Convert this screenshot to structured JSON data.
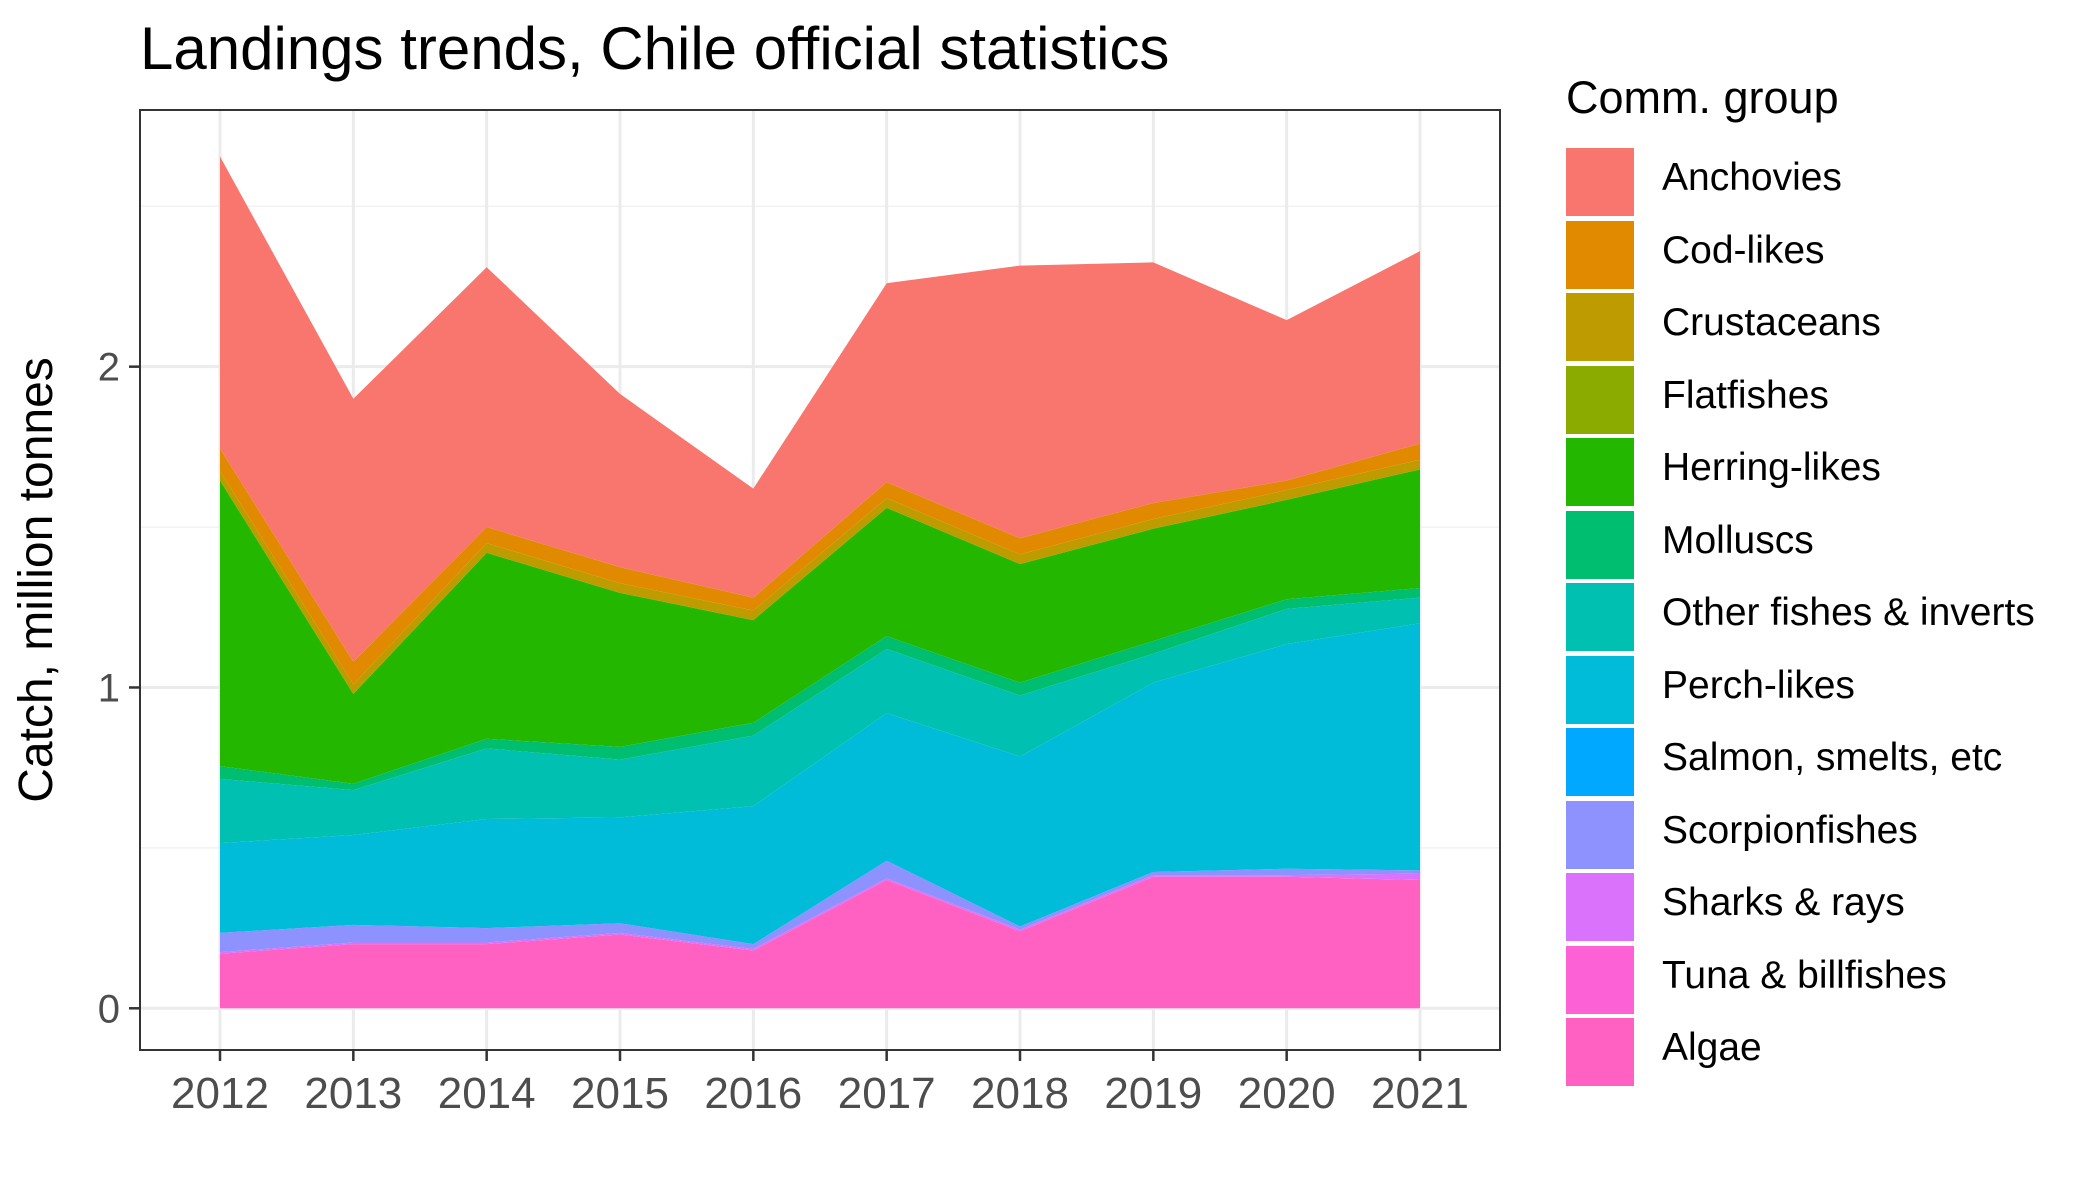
{
  "chart_data": {
    "type": "area",
    "stacked": true,
    "title": "Landings trends, Chile official statistics",
    "xlabel": "",
    "ylabel": "Catch, million tonnes",
    "x": [
      2012,
      2013,
      2014,
      2015,
      2016,
      2017,
      2018,
      2019,
      2020,
      2021
    ],
    "ylim": [
      -0.13,
      2.8
    ],
    "yticks": [
      0,
      1,
      2
    ],
    "grid": true,
    "legend_title": "Comm. group",
    "legend_position": "right",
    "series": [
      {
        "name": "Algae",
        "color": "#FF61C3",
        "values": [
          0.17,
          0.2,
          0.2,
          0.23,
          0.18,
          0.4,
          0.24,
          0.41,
          0.41,
          0.4
        ]
      },
      {
        "name": "Tuna & billfishes",
        "color": "#FC61D5",
        "values": [
          0,
          0,
          0,
          0,
          0,
          0,
          0,
          0,
          0,
          0
        ]
      },
      {
        "name": "Sharks & rays",
        "color": "#DB72FB",
        "values": [
          0.005,
          0.005,
          0.005,
          0.005,
          0.005,
          0.005,
          0.005,
          0.005,
          0.005,
          0.02
        ]
      },
      {
        "name": "Scorpionfishes",
        "color": "#8E92FF",
        "values": [
          0.06,
          0.055,
          0.045,
          0.03,
          0.015,
          0.055,
          0.01,
          0.01,
          0.02,
          0.01
        ]
      },
      {
        "name": "Salmon, smelts, etc",
        "color": "#00A9FF",
        "values": [
          0,
          0,
          0,
          0,
          0,
          0,
          0,
          0,
          0,
          0
        ]
      },
      {
        "name": "Perch-likes",
        "color": "#00BCD8",
        "values": [
          0.28,
          0.28,
          0.34,
          0.33,
          0.43,
          0.46,
          0.53,
          0.59,
          0.7,
          0.77
        ]
      },
      {
        "name": "Other fishes & inverts",
        "color": "#00C0B2",
        "values": [
          0.2,
          0.14,
          0.22,
          0.18,
          0.22,
          0.2,
          0.19,
          0.09,
          0.11,
          0.08
        ]
      },
      {
        "name": "Molluscs",
        "color": "#00BE70",
        "values": [
          0.04,
          0.02,
          0.03,
          0.04,
          0.04,
          0.04,
          0.04,
          0.04,
          0.03,
          0.03
        ]
      },
      {
        "name": "Herring-likes",
        "color": "#24B700",
        "values": [
          0.89,
          0.28,
          0.58,
          0.48,
          0.32,
          0.4,
          0.37,
          0.35,
          0.31,
          0.37
        ]
      },
      {
        "name": "Flatfishes",
        "color": "#8CAB00",
        "values": [
          0,
          0,
          0,
          0,
          0,
          0,
          0,
          0,
          0,
          0
        ]
      },
      {
        "name": "Crustaceans",
        "color": "#BE9C00",
        "values": [
          0.03,
          0.03,
          0.03,
          0.03,
          0.03,
          0.03,
          0.03,
          0.03,
          0.03,
          0.03
        ]
      },
      {
        "name": "Cod-likes",
        "color": "#E18A00",
        "values": [
          0.07,
          0.07,
          0.05,
          0.05,
          0.04,
          0.05,
          0.05,
          0.05,
          0.03,
          0.05
        ]
      },
      {
        "name": "Anchovies",
        "color": "#F8766D",
        "values": [
          0.91,
          0.82,
          0.81,
          0.54,
          0.34,
          0.62,
          0.85,
          0.75,
          0.5,
          0.6
        ]
      }
    ]
  }
}
